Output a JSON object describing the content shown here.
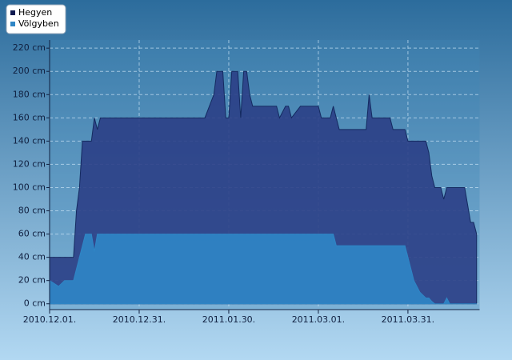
{
  "chart_data": {
    "type": "area",
    "x": [
      "2010.12.01.",
      "2010.12.04.",
      "2010.12.06.",
      "2010.12.09.",
      "2010.12.10.",
      "2010.12.11.",
      "2010.12.12.",
      "2010.12.13.",
      "2010.12.15.",
      "2010.12.16.",
      "2010.12.17.",
      "2010.12.18.",
      "2011.01.22.",
      "2011.01.25.",
      "2011.01.26.",
      "2011.01.28.",
      "2011.01.29.",
      "2011.01.30.",
      "2011.01.31.",
      "2011.02.02.",
      "2011.02.03.",
      "2011.02.04.",
      "2011.02.05.",
      "2011.02.06.",
      "2011.02.07.",
      "2011.02.15.",
      "2011.02.16.",
      "2011.02.18.",
      "2011.02.19.",
      "2011.02.20.",
      "2011.02.23.",
      "2011.03.01.",
      "2011.03.02.",
      "2011.03.05.",
      "2011.03.06.",
      "2011.03.07.",
      "2011.03.08.",
      "2011.03.17.",
      "2011.03.18.",
      "2011.03.19.",
      "2011.03.25.",
      "2011.03.26.",
      "2011.03.30.",
      "2011.03.31.",
      "2011.04.01.",
      "2011.04.02.",
      "2011.04.04.",
      "2011.04.06.",
      "2011.04.07.",
      "2011.04.08.",
      "2011.04.09.",
      "2011.04.11.",
      "2011.04.12.",
      "2011.04.13.",
      "2011.04.14.",
      "2011.04.19.",
      "2011.04.21.",
      "2011.04.22.",
      "2011.04.23."
    ],
    "series": [
      {
        "name": "Hegyen",
        "color": "#2b3f86",
        "values": [
          40,
          40,
          40,
          40,
          80,
          100,
          140,
          140,
          140,
          160,
          150,
          160,
          160,
          180,
          200,
          200,
          160,
          160,
          200,
          200,
          160,
          200,
          200,
          180,
          170,
          170,
          160,
          170,
          170,
          160,
          170,
          170,
          160,
          160,
          170,
          160,
          150,
          150,
          180,
          160,
          160,
          150,
          150,
          140,
          140,
          140,
          140,
          140,
          130,
          110,
          100,
          100,
          90,
          100,
          100,
          100,
          70,
          70,
          60
        ]
      },
      {
        "name": "Völgyben",
        "color": "#2f86c6",
        "values": [
          20,
          15,
          20,
          20,
          30,
          40,
          50,
          60,
          60,
          45,
          60,
          60,
          60,
          60,
          60,
          60,
          60,
          60,
          60,
          60,
          60,
          60,
          60,
          60,
          60,
          60,
          60,
          60,
          60,
          60,
          60,
          60,
          60,
          60,
          60,
          50,
          50,
          50,
          50,
          50,
          50,
          50,
          50,
          40,
          30,
          20,
          10,
          5,
          5,
          2,
          0,
          0,
          0,
          5,
          0,
          0,
          0,
          0,
          0
        ]
      }
    ],
    "xlim": [
      "2010.12.01.",
      "2011.04.24."
    ],
    "xticks": [
      "2010.12.01.",
      "2010.12.31.",
      "2011.01.30.",
      "2011.03.01.",
      "2011.03.31."
    ],
    "ylim": [
      -5,
      227
    ],
    "yticks": [
      {
        "value": 0,
        "label": "0 cm"
      },
      {
        "value": 20,
        "label": "20 cm"
      },
      {
        "value": 40,
        "label": "40 cm"
      },
      {
        "value": 60,
        "label": "60 cm"
      },
      {
        "value": 80,
        "label": "80 cm"
      },
      {
        "value": 100,
        "label": "100 cm"
      },
      {
        "value": 120,
        "label": "120 cm"
      },
      {
        "value": 140,
        "label": "140 cm"
      },
      {
        "value": 160,
        "label": "160 cm"
      },
      {
        "value": 180,
        "label": "180 cm"
      },
      {
        "value": 200,
        "label": "200 cm"
      },
      {
        "value": 220,
        "label": "220 cm"
      }
    ],
    "grid": true,
    "legend": "top-left"
  }
}
